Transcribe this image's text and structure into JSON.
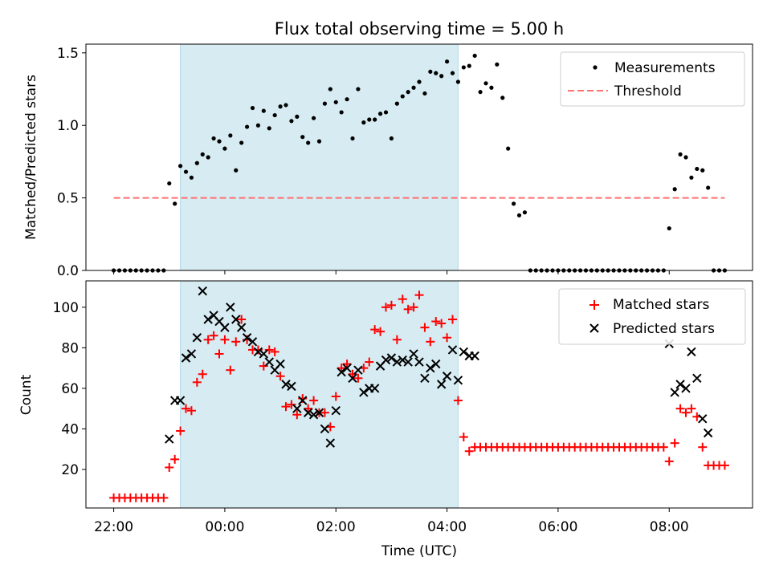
{
  "figure": {
    "title": "Flux total observing time = 5.00 h",
    "xlabel": "Time (UTC)",
    "x_tick_labels": [
      "22:00",
      "00:00",
      "02:00",
      "04:00",
      "06:00",
      "08:00"
    ],
    "x_ticks_hours": [
      -2,
      0,
      2,
      4,
      6,
      8
    ],
    "shaded_span_hours": [
      -0.8,
      4.2
    ],
    "shade_color": "#add8e6"
  },
  "chart_data": [
    {
      "type": "scatter",
      "panel": "top",
      "ylabel": "Matched/Predicted stars",
      "xlim": [
        -2.5,
        9.5
      ],
      "ylim": [
        0,
        1.56
      ],
      "y_tick_values": [
        0,
        0.5,
        1.0,
        1.5
      ],
      "y_tick_labels": [
        "0.0",
        "0.5",
        "1.0",
        "1.5"
      ],
      "legend_position": "top-right",
      "legend": [
        "Measurements",
        "Threshold"
      ],
      "threshold": {
        "name": "Threshold",
        "value": 0.5,
        "x_range": [
          -2,
          9
        ],
        "color": "#ff7070",
        "style": "dashed"
      },
      "series": [
        {
          "name": "Measurements",
          "color": "#000000",
          "marker": "dot",
          "x": [
            -2.0,
            -1.9,
            -1.8,
            -1.7,
            -1.6,
            -1.5,
            -1.4,
            -1.3,
            -1.2,
            -1.1,
            -1.0,
            -0.9,
            -0.8,
            -0.7,
            -0.6,
            -0.5,
            -0.4,
            -0.3,
            -0.2,
            -0.1,
            0.0,
            0.1,
            0.2,
            0.3,
            0.4,
            0.5,
            0.6,
            0.7,
            0.8,
            0.9,
            1.0,
            1.1,
            1.2,
            1.3,
            1.4,
            1.5,
            1.6,
            1.7,
            1.8,
            1.9,
            2.0,
            2.1,
            2.2,
            2.3,
            2.4,
            2.5,
            2.6,
            2.7,
            2.8,
            2.9,
            3.0,
            3.1,
            3.2,
            3.3,
            3.4,
            3.5,
            3.6,
            3.7,
            3.8,
            3.9,
            4.0,
            4.1,
            4.2,
            4.3,
            4.4,
            4.5,
            4.6,
            4.7,
            4.8,
            4.9,
            5.0,
            5.1,
            5.2,
            5.3,
            5.4,
            5.5,
            5.6,
            5.7,
            5.8,
            5.9,
            6.0,
            6.1,
            6.2,
            6.3,
            6.4,
            6.5,
            6.6,
            6.7,
            6.8,
            6.9,
            7.0,
            7.1,
            7.2,
            7.3,
            7.4,
            7.5,
            7.6,
            7.7,
            7.8,
            7.9,
            8.0,
            8.1,
            8.2,
            8.3,
            8.4,
            8.5,
            8.6,
            8.7,
            8.8,
            8.9,
            9.0
          ],
          "y": [
            0.0,
            0.0,
            0.0,
            0.0,
            0.0,
            0.0,
            0.0,
            0.0,
            0.0,
            0.0,
            0.6,
            0.46,
            0.72,
            0.68,
            0.64,
            0.74,
            0.8,
            0.78,
            0.91,
            0.89,
            0.84,
            0.93,
            0.69,
            0.88,
            0.99,
            1.12,
            1.0,
            1.1,
            0.98,
            1.07,
            1.13,
            1.14,
            1.03,
            1.06,
            0.92,
            0.88,
            1.05,
            0.89,
            1.15,
            1.25,
            1.16,
            1.09,
            1.18,
            0.91,
            1.25,
            1.02,
            1.04,
            1.04,
            1.08,
            1.09,
            0.91,
            1.15,
            1.2,
            1.23,
            1.26,
            1.3,
            1.22,
            1.37,
            1.36,
            1.34,
            1.44,
            1.36,
            1.3,
            1.4,
            1.41,
            1.48,
            1.23,
            1.29,
            1.26,
            1.42,
            1.19,
            0.84,
            0.46,
            0.38,
            0.4,
            0.0,
            0.0,
            0.0,
            0.0,
            0.0,
            0.0,
            0.0,
            0.0,
            0.0,
            0.0,
            0.0,
            0.0,
            0.0,
            0.0,
            0.0,
            0.0,
            0.0,
            0.0,
            0.0,
            0.0,
            0.0,
            0.0,
            0.0,
            0.0,
            0.0,
            0.29,
            0.56,
            0.8,
            0.78,
            0.64,
            0.7,
            0.69,
            0.57,
            0.0,
            0.0,
            0.0
          ]
        }
      ]
    },
    {
      "type": "scatter",
      "panel": "bottom",
      "ylabel": "Count",
      "xlim": [
        -2.5,
        9.5
      ],
      "ylim": [
        1,
        113
      ],
      "y_tick_values": [
        20,
        40,
        60,
        80,
        100
      ],
      "y_tick_labels": [
        "20",
        "40",
        "60",
        "80",
        "100"
      ],
      "legend_position": "top-right",
      "legend": [
        "Matched stars",
        "Predicted stars"
      ],
      "series": [
        {
          "name": "Matched stars",
          "color": "#ff0000",
          "marker": "plus",
          "x": [
            -2.0,
            -1.9,
            -1.8,
            -1.7,
            -1.6,
            -1.5,
            -1.4,
            -1.3,
            -1.2,
            -1.1,
            -1.0,
            -0.9,
            -0.8,
            -0.7,
            -0.6,
            -0.5,
            -0.4,
            -0.3,
            -0.2,
            -0.1,
            0.0,
            0.1,
            0.2,
            0.3,
            0.4,
            0.5,
            0.6,
            0.7,
            0.8,
            0.9,
            1.0,
            1.1,
            1.2,
            1.3,
            1.4,
            1.5,
            1.6,
            1.7,
            1.8,
            1.9,
            2.0,
            2.1,
            2.2,
            2.3,
            2.4,
            2.5,
            2.6,
            2.7,
            2.8,
            2.9,
            3.0,
            3.1,
            3.2,
            3.3,
            3.4,
            3.5,
            3.6,
            3.7,
            3.8,
            3.9,
            4.0,
            4.1,
            4.2,
            4.3,
            4.4,
            4.5,
            4.6,
            4.7,
            4.8,
            4.9,
            5.0,
            5.1,
            5.2,
            5.3,
            5.4,
            5.5,
            5.6,
            5.7,
            5.8,
            5.9,
            6.0,
            6.1,
            6.2,
            6.3,
            6.4,
            6.5,
            6.6,
            6.7,
            6.8,
            6.9,
            7.0,
            7.1,
            7.2,
            7.3,
            7.4,
            7.5,
            7.6,
            7.7,
            7.8,
            7.9,
            8.0,
            8.1,
            8.2,
            8.3,
            8.4,
            8.5,
            8.6,
            8.7,
            8.8,
            8.9,
            9.0
          ],
          "y": [
            6,
            6,
            6,
            6,
            6,
            6,
            6,
            6,
            6,
            6,
            21,
            25,
            39,
            50,
            49,
            63,
            67,
            84,
            86,
            77,
            84,
            69,
            83,
            94,
            84,
            79,
            79,
            71,
            79,
            78,
            66,
            51,
            52,
            47,
            55,
            50,
            54,
            48,
            48,
            41,
            56,
            70,
            72,
            67,
            65,
            70,
            73,
            89,
            88,
            100,
            101,
            84,
            104,
            99,
            100,
            106,
            90,
            83,
            93,
            92,
            85,
            94,
            54,
            36,
            29,
            31,
            31,
            31,
            31,
            31,
            31,
            31,
            31,
            31,
            31,
            31,
            31,
            31,
            31,
            31,
            31,
            31,
            31,
            31,
            31,
            31,
            31,
            31,
            31,
            31,
            31,
            31,
            31,
            31,
            31,
            31,
            31,
            31,
            31,
            31,
            24,
            33,
            50,
            48,
            50,
            46,
            31,
            22,
            22,
            22,
            22
          ]
        },
        {
          "name": "Predicted stars",
          "color": "#000000",
          "marker": "cross",
          "x": [
            -1.0,
            -0.9,
            -0.8,
            -0.7,
            -0.6,
            -0.5,
            -0.4,
            -0.3,
            -0.2,
            -0.1,
            0.0,
            0.1,
            0.2,
            0.3,
            0.4,
            0.5,
            0.6,
            0.7,
            0.8,
            0.9,
            1.0,
            1.1,
            1.2,
            1.3,
            1.4,
            1.5,
            1.6,
            1.7,
            1.8,
            1.9,
            2.0,
            2.1,
            2.2,
            2.3,
            2.4,
            2.5,
            2.6,
            2.7,
            2.8,
            2.9,
            3.0,
            3.1,
            3.2,
            3.3,
            3.4,
            3.5,
            3.6,
            3.7,
            3.8,
            3.9,
            4.0,
            4.1,
            4.2,
            4.3,
            4.4,
            4.5,
            8.0,
            8.1,
            8.2,
            8.3,
            8.4,
            8.5,
            8.6,
            8.7
          ],
          "y": [
            35,
            54,
            54,
            75,
            77,
            85,
            108,
            94,
            96,
            93,
            90,
            100,
            94,
            90,
            85,
            83,
            78,
            77,
            73,
            69,
            72,
            62,
            61,
            50,
            54,
            48,
            47,
            48,
            40,
            33,
            49,
            68,
            70,
            65,
            69,
            58,
            60,
            60,
            71,
            74,
            75,
            73,
            74,
            73,
            77,
            73,
            65,
            70,
            72,
            62,
            66,
            79,
            64,
            78,
            76,
            76,
            82,
            58,
            62,
            60,
            78,
            65,
            45,
            38
          ]
        }
      ]
    }
  ]
}
